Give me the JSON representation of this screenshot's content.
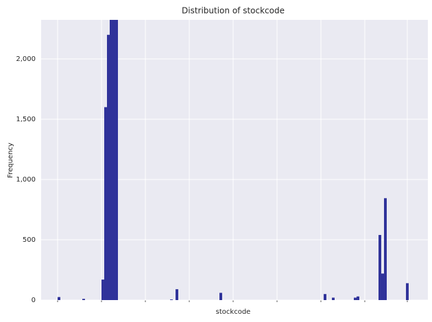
{
  "chart_data": {
    "type": "bar",
    "title": "Distribution of stockcode",
    "x_label": "stockcode",
    "y_label": "Frequency",
    "values": [
      0,
      0,
      0,
      0,
      0,
      0,
      25,
      0,
      0,
      0,
      0,
      0,
      0,
      0,
      0,
      10,
      0,
      0,
      0,
      0,
      0,
      0,
      170,
      1600,
      2200,
      2324,
      2324,
      2324,
      0,
      0,
      0,
      0,
      0,
      0,
      0,
      0,
      0,
      0,
      0,
      0,
      0,
      0,
      0,
      0,
      0,
      0,
      0,
      5,
      0,
      90,
      0,
      0,
      0,
      0,
      0,
      0,
      0,
      0,
      0,
      0,
      0,
      0,
      0,
      0,
      0,
      60,
      0,
      0,
      0,
      0,
      0,
      0,
      0,
      0,
      0,
      0,
      0,
      0,
      0,
      0,
      0,
      0,
      0,
      0,
      0,
      0,
      0,
      0,
      0,
      0,
      0,
      0,
      0,
      0,
      0,
      0,
      0,
      0,
      0,
      0,
      0,
      0,
      0,
      50,
      0,
      0,
      20,
      0,
      0,
      0,
      0,
      0,
      0,
      0,
      20,
      30,
      0,
      0,
      0,
      0,
      0,
      0,
      0,
      540,
      220,
      845,
      0,
      0,
      0,
      0,
      0,
      0,
      0,
      140,
      0,
      0,
      0,
      0,
      0,
      0,
      0
    ],
    "color": "#30339a",
    "ylim": [
      0,
      2324
    ],
    "yticks": [
      0,
      {
        "value": 500,
        "label": "500"
      },
      {
        "value": 1000,
        "label": "1,000"
      },
      {
        "value": 1500,
        "label": "1,500"
      },
      {
        "value": 2000,
        "label": "2,000"
      }
    ],
    "grid": true
  }
}
